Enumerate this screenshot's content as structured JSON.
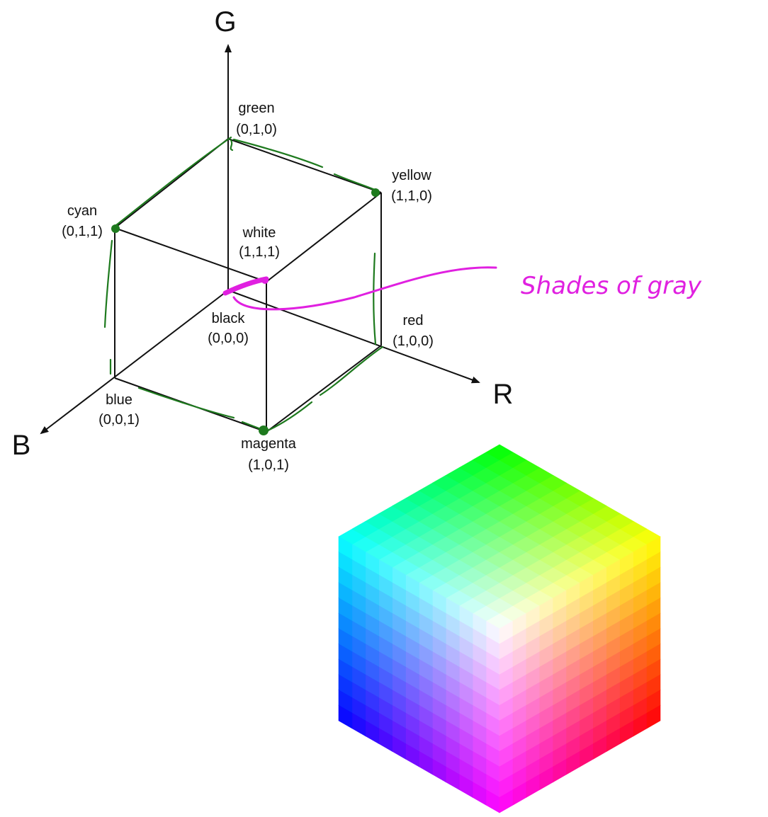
{
  "colors": {
    "line": "#111111",
    "green_ink": "#1e7a1e",
    "magenta_ink": "#e020e0",
    "background": "#ffffff"
  },
  "axes": {
    "r": "R",
    "g": "G",
    "b": "B"
  },
  "vertices": {
    "green": {
      "name": "green",
      "coord": "(0,1,0)"
    },
    "yellow": {
      "name": "yellow",
      "coord": "(1,1,0)"
    },
    "cyan": {
      "name": "cyan",
      "coord": "(0,1,1)"
    },
    "white": {
      "name": "white",
      "coord": "(1,1,1)"
    },
    "black": {
      "name": "black",
      "coord": "(0,0,0)"
    },
    "red": {
      "name": "red",
      "coord": "(1,0,0)"
    },
    "blue": {
      "name": "blue",
      "coord": "(0,0,1)"
    },
    "magenta": {
      "name": "magenta",
      "coord": "(1,0,1)"
    }
  },
  "annotation": {
    "text": "Shades of gray"
  },
  "color_cube": {
    "steps": 12,
    "corner_colors": {
      "top": "#00ff00",
      "upper_left": "#00ffff",
      "upper_right": "#ffff00",
      "center": "#ffffff",
      "lower_left": "#0000ff",
      "lower_right": "#ff0000",
      "bottom": "#ff00ff"
    }
  }
}
